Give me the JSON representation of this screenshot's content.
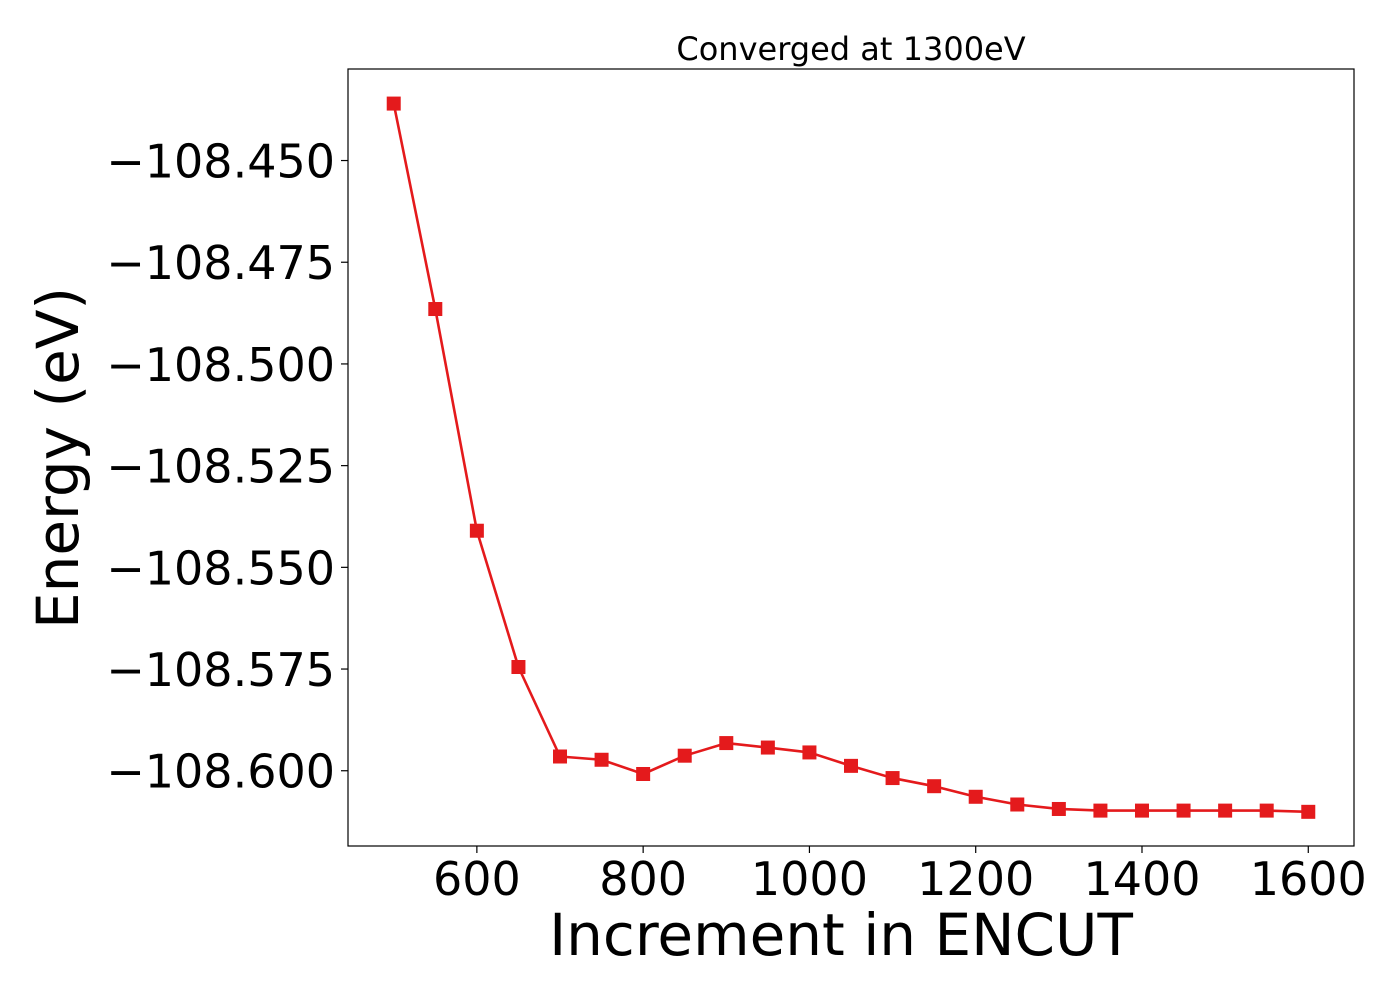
{
  "chart_data": {
    "type": "line",
    "title": "Converged at 1300eV",
    "xlabel": "Increment in ENCUT",
    "ylabel": "Energy (eV)",
    "xlim": [
      445,
      1655
    ],
    "ylim": [
      -108.6185,
      -108.4275
    ],
    "xticks": [
      600,
      800,
      1000,
      1200,
      1400,
      1600
    ],
    "xtick_labels": [
      "600",
      "800",
      "1000",
      "1200",
      "1400",
      "1600"
    ],
    "yticks": [
      -108.45,
      -108.475,
      -108.5,
      -108.525,
      -108.55,
      -108.575,
      -108.6
    ],
    "ytick_labels": [
      "−108.450",
      "−108.475",
      "−108.500",
      "−108.525",
      "−108.550",
      "−108.575",
      "−108.600"
    ],
    "grid": false,
    "marker": "square",
    "series": [
      {
        "color": "#e41a1c",
        "x": [
          500,
          550,
          600,
          650,
          700,
          750,
          800,
          850,
          900,
          950,
          1000,
          1050,
          1100,
          1150,
          1200,
          1250,
          1300,
          1350,
          1400,
          1450,
          1500,
          1550,
          1600
        ],
        "y": [
          -108.436,
          -108.4865,
          -108.541,
          -108.5745,
          -108.5965,
          -108.5973,
          -108.6008,
          -108.5963,
          -108.5932,
          -108.5943,
          -108.5955,
          -108.5988,
          -108.6018,
          -108.6038,
          -108.6064,
          -108.6083,
          -108.6094,
          -108.6098,
          -108.6098,
          -108.6098,
          -108.6098,
          -108.6098,
          -108.6101
        ]
      }
    ]
  }
}
